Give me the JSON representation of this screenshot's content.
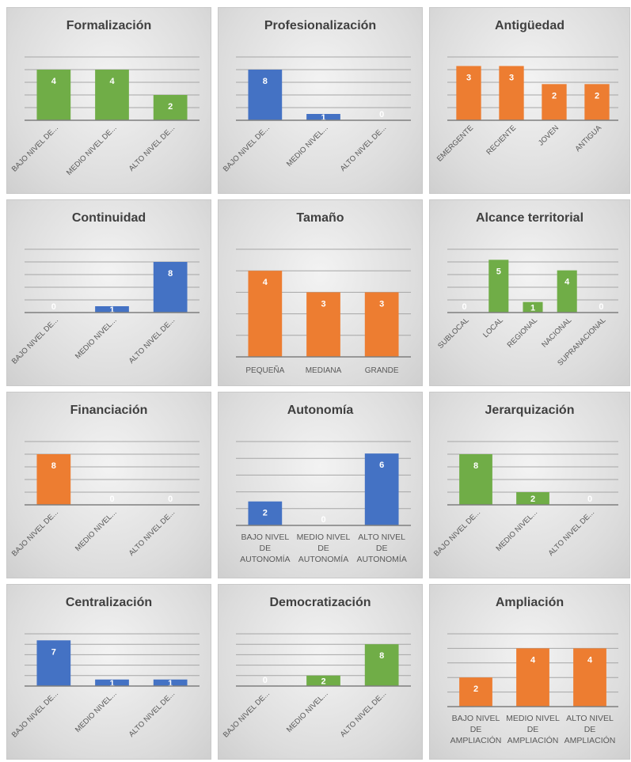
{
  "colors": {
    "green": "#70ad47",
    "blue": "#4472c4",
    "orange": "#ed7d31"
  },
  "chart_data": [
    {
      "type": "bar",
      "title": "Formalización",
      "color": "green",
      "categories": [
        "BAJO NIVEL DE...",
        "MEDIO NIVEL DE...",
        "ALTO NIVEL DE..."
      ],
      "values": [
        4,
        4,
        2
      ],
      "label_style": "rotated",
      "ylim": [
        0,
        5
      ],
      "grid": true
    },
    {
      "type": "bar",
      "title": "Profesionalización",
      "color": "blue",
      "categories": [
        "BAJO NIVEL DE...",
        "MEDIO NIVEL...",
        "ALTO NIVEL DE..."
      ],
      "values": [
        8,
        1,
        0
      ],
      "label_style": "rotated",
      "ylim": [
        0,
        10
      ],
      "grid": true
    },
    {
      "type": "bar",
      "title": "Antigüedad",
      "color": "orange",
      "categories": [
        "EMERGENTE",
        "RECIENTE",
        "JOVEN",
        "ANTIGUA"
      ],
      "values": [
        3,
        3,
        2,
        2
      ],
      "label_style": "rotated",
      "ylim": [
        0,
        3.5
      ],
      "grid": true
    },
    {
      "type": "bar",
      "title": "Continuidad",
      "color": "blue",
      "categories": [
        "BAJO NIVEL DE...",
        "MEDIO NIVEL...",
        "ALTO NIVEL DE..."
      ],
      "values": [
        0,
        1,
        8
      ],
      "label_style": "rotated",
      "ylim": [
        0,
        10
      ],
      "grid": true
    },
    {
      "type": "bar",
      "title": "Tamaño",
      "color": "orange",
      "categories": [
        "PEQUEÑA",
        "MEDIANA",
        "GRANDE"
      ],
      "values": [
        4,
        3,
        3
      ],
      "label_style": "horizontal",
      "ylim": [
        0,
        5
      ],
      "grid": true
    },
    {
      "type": "bar",
      "title": "Alcance territorial",
      "color": "green",
      "categories": [
        "SUBLOCAL",
        "LOCAL",
        "REGIONAL",
        "NACIONAL",
        "SUPRANACIONAL"
      ],
      "values": [
        0,
        5,
        1,
        4,
        0
      ],
      "label_style": "rotated",
      "ylim": [
        0,
        6
      ],
      "grid": true
    },
    {
      "type": "bar",
      "title": "Financiación",
      "color": "orange",
      "categories": [
        "BAJO NIVEL DE...",
        "MEDIO NIVEL...",
        "ALTO NIVEL DE..."
      ],
      "values": [
        8,
        0,
        0
      ],
      "label_style": "rotated",
      "ylim": [
        0,
        10
      ],
      "grid": true
    },
    {
      "type": "bar",
      "title": "Autonomía",
      "color": "blue",
      "categories": [
        "BAJO NIVEL DE AUTONOMÍA",
        "MEDIO NIVEL DE AUTONOMÍA",
        "ALTO NIVEL DE AUTONOMÍA"
      ],
      "category_lines": [
        [
          "BAJO NIVEL",
          "DE",
          "AUTONOMÍA"
        ],
        [
          "MEDIO NIVEL",
          "DE",
          "AUTONOMÍA"
        ],
        [
          "ALTO NIVEL",
          "DE",
          "AUTONOMÍA"
        ]
      ],
      "values": [
        2,
        0,
        6
      ],
      "label_style": "wrapped",
      "ylim": [
        0,
        7
      ],
      "grid": true
    },
    {
      "type": "bar",
      "title": "Jerarquización",
      "color": "green",
      "categories": [
        "BAJO NIVEL DE...",
        "MEDIO NIVEL...",
        "ALTO NIVEL DE..."
      ],
      "values": [
        8,
        2,
        0
      ],
      "label_style": "rotated",
      "ylim": [
        0,
        10
      ],
      "grid": true
    },
    {
      "type": "bar",
      "title": "Centralización",
      "color": "blue",
      "categories": [
        "BAJO NIVEL DE...",
        "MEDIO NIVEL...",
        "ALTO NIVEL DE..."
      ],
      "values": [
        7,
        1,
        1
      ],
      "label_style": "rotated",
      "ylim": [
        0,
        8
      ],
      "grid": true
    },
    {
      "type": "bar",
      "title": "Democratización",
      "color": "green",
      "categories": [
        "BAJO NIVEL DE...",
        "MEDIO NIVEL...",
        "ALTO NIVEL DE..."
      ],
      "values": [
        0,
        2,
        8
      ],
      "label_style": "rotated",
      "ylim": [
        0,
        10
      ],
      "grid": true
    },
    {
      "type": "bar",
      "title": "Ampliación",
      "color": "orange",
      "categories": [
        "BAJO NIVEL DE AMPLIACIÓN",
        "MEDIO NIVEL DE AMPLIACIÓN",
        "ALTO NIVEL DE AMPLIACIÓN"
      ],
      "category_lines": [
        [
          "BAJO NIVEL",
          "DE",
          "AMPLIACIÓN"
        ],
        [
          "MEDIO NIVEL",
          "DE",
          "AMPLIACIÓN"
        ],
        [
          "ALTO NIVEL",
          "DE",
          "AMPLIACIÓN"
        ]
      ],
      "values": [
        2,
        4,
        4
      ],
      "label_style": "wrapped",
      "ylim": [
        0,
        5
      ],
      "grid": true
    }
  ]
}
